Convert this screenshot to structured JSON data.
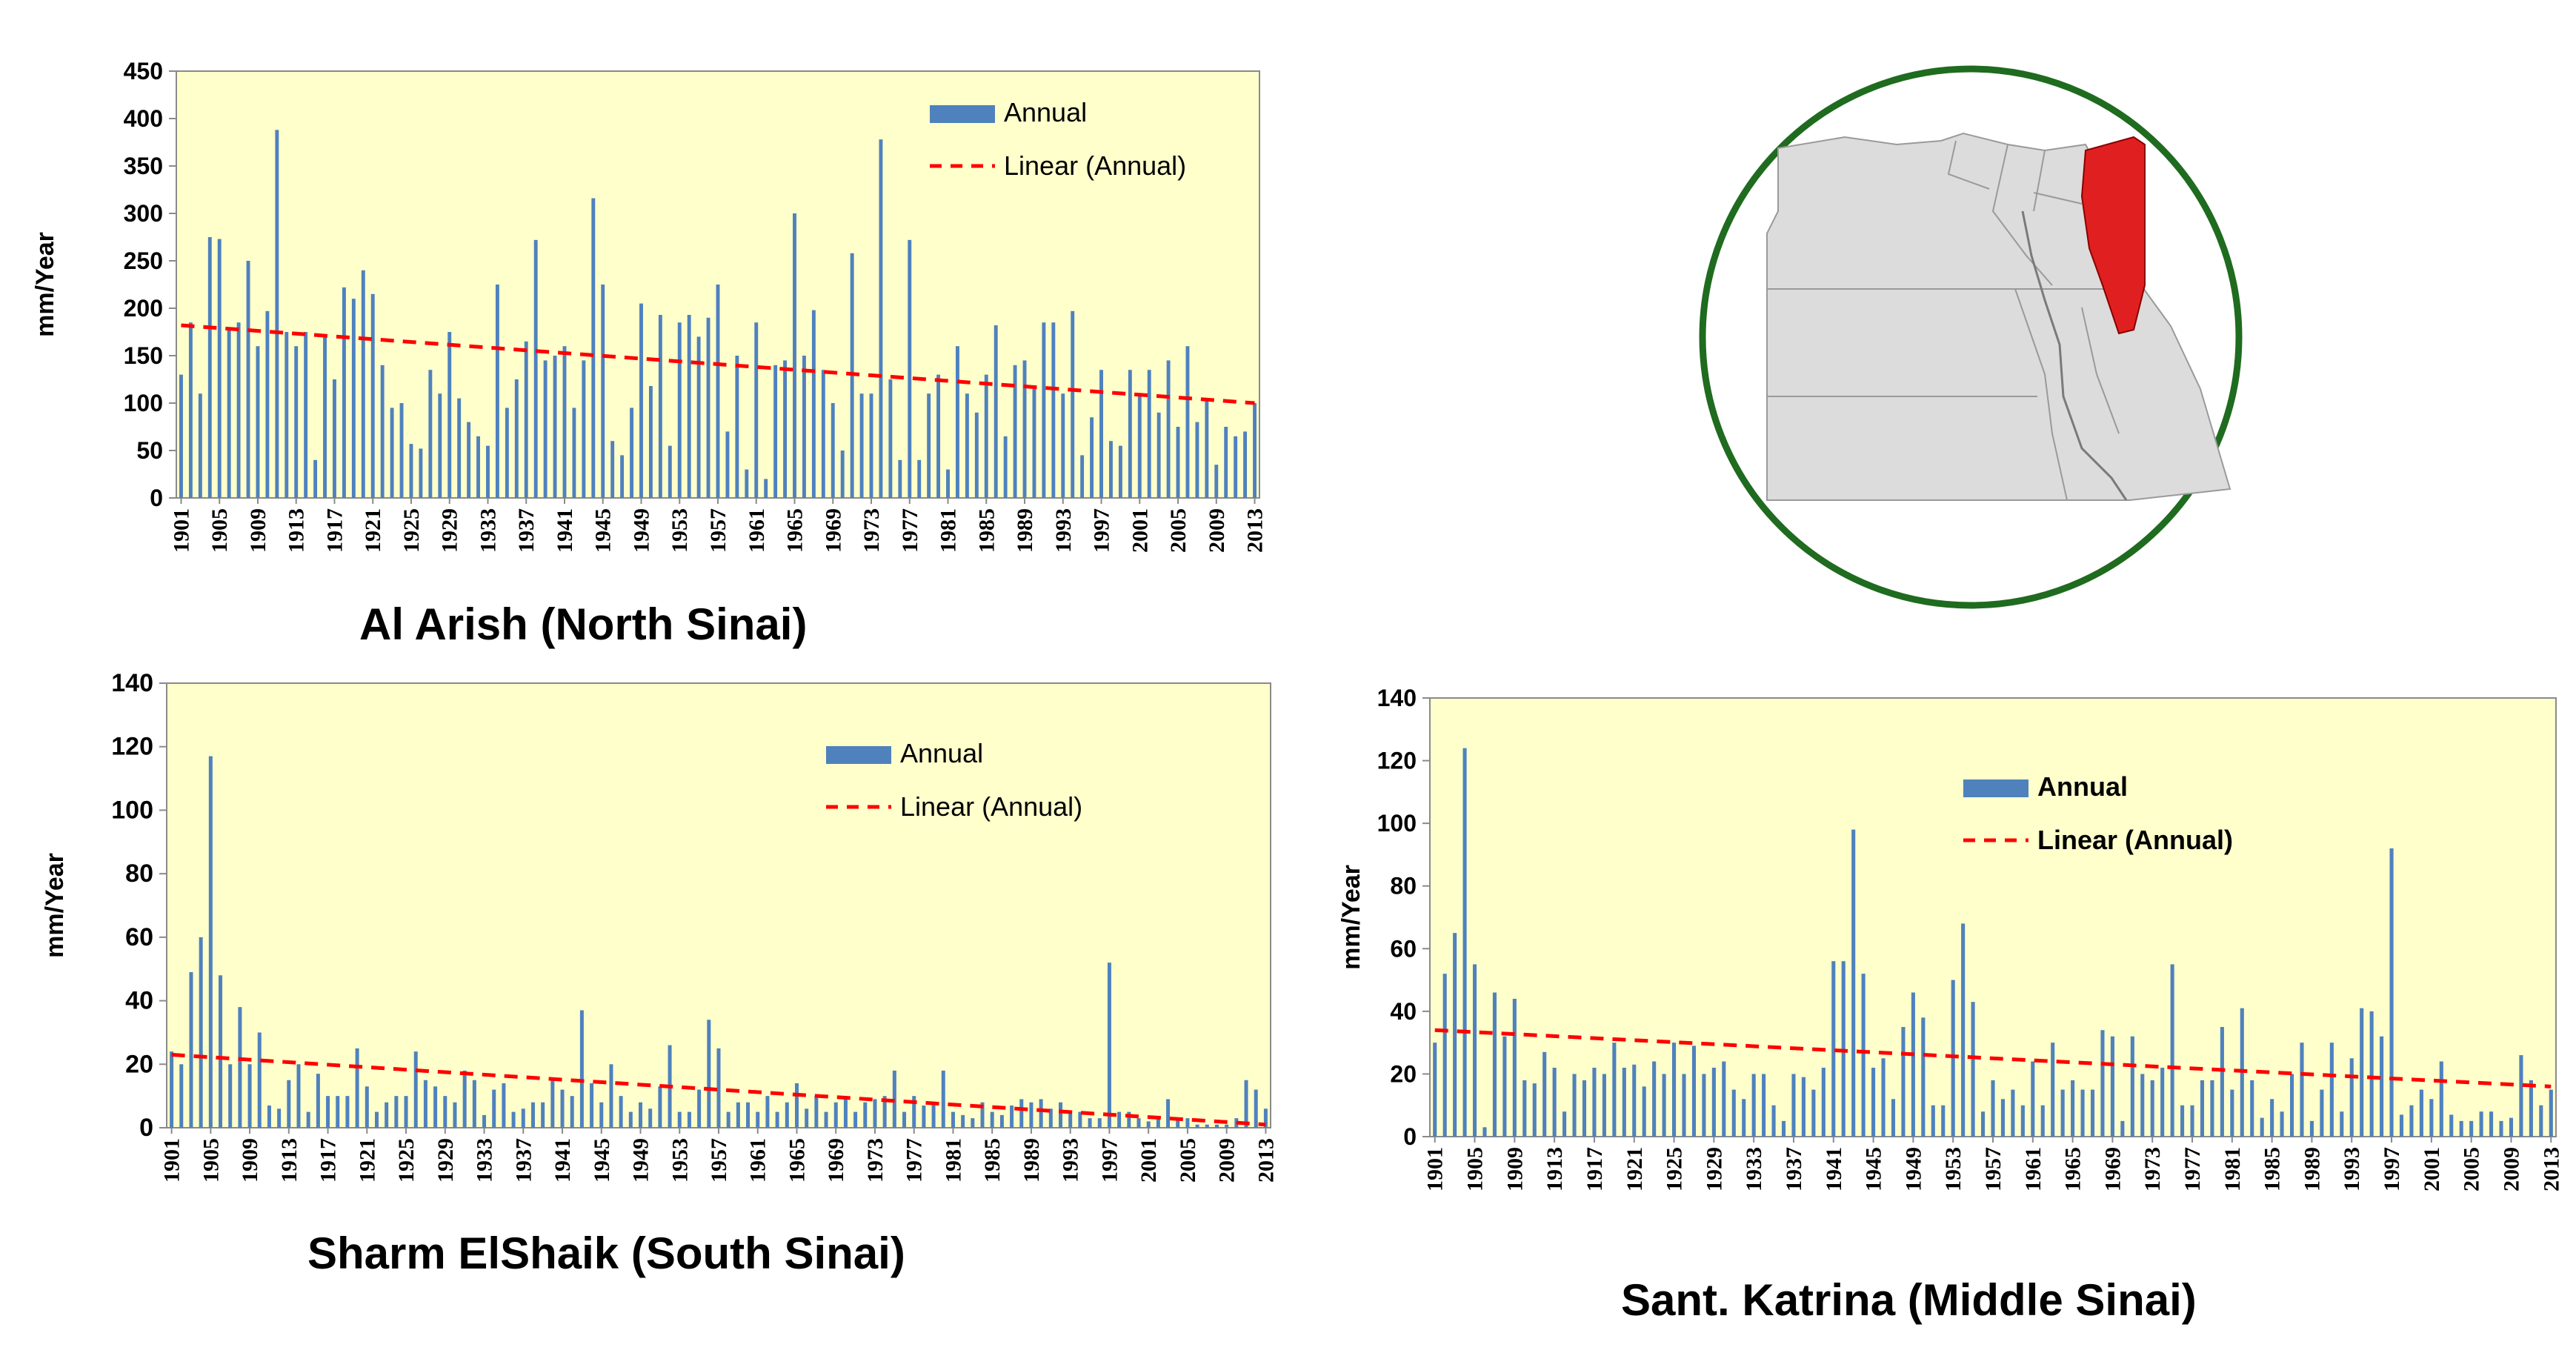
{
  "chart_data": [
    {
      "type": "bar",
      "title": "Al Arish (North Sinai)",
      "xlabel": "",
      "ylabel": "mm/Year",
      "ylim": [
        0,
        450
      ],
      "yticks": [
        0,
        50,
        100,
        150,
        200,
        250,
        300,
        350,
        400,
        450
      ],
      "tick_labels": [
        "1901",
        "1905",
        "1909",
        "1913",
        "1917",
        "1921",
        "1925",
        "1929",
        "1933",
        "1937",
        "1941",
        "1945",
        "1949",
        "1953",
        "1957",
        "1961",
        "1965",
        "1969",
        "1973",
        "1977",
        "1981",
        "1985",
        "1989",
        "1993",
        "1997",
        "2001",
        "2005",
        "2009",
        "2013"
      ],
      "legend": [
        "Annual",
        "Linear (Annual)"
      ],
      "legend_position": "top-right",
      "trend": {
        "start": 182,
        "end": 100
      },
      "categories_start": 1901,
      "categories_end": 2013,
      "series": [
        {
          "name": "Annual",
          "values": [
            130,
            185,
            110,
            275,
            273,
            180,
            185,
            250,
            160,
            197,
            388,
            175,
            160,
            175,
            40,
            170,
            125,
            222,
            210,
            240,
            215,
            140,
            95,
            100,
            57,
            52,
            135,
            110,
            175,
            105,
            80,
            65,
            55,
            225,
            95,
            125,
            165,
            272,
            145,
            150,
            160,
            95,
            145,
            316,
            225,
            60,
            45,
            95,
            205,
            118,
            193,
            55,
            185,
            193,
            170,
            190,
            225,
            70,
            150,
            30,
            185,
            20,
            140,
            145,
            300,
            150,
            198,
            135,
            100,
            50,
            258,
            110,
            110,
            378,
            125,
            40,
            272,
            40,
            110,
            130,
            30,
            160,
            110,
            90,
            130,
            182,
            65,
            140,
            145,
            115,
            185,
            185,
            110,
            197,
            45,
            85,
            135,
            60,
            55,
            135,
            110,
            135,
            90,
            145,
            75,
            160,
            80,
            105,
            35,
            75,
            65,
            70,
            100
          ]
        }
      ]
    },
    {
      "type": "bar",
      "title": "Sharm ElShaik  (South Sinai)",
      "xlabel": "",
      "ylabel": "mm/Year",
      "ylim": [
        0,
        140
      ],
      "yticks": [
        0,
        20,
        40,
        60,
        80,
        100,
        120,
        140
      ],
      "tick_labels": [
        "1901",
        "1905",
        "1909",
        "1913",
        "1917",
        "1921",
        "1925",
        "1929",
        "1933",
        "1937",
        "1941",
        "1945",
        "1949",
        "1953",
        "1957",
        "1961",
        "1965",
        "1969",
        "1973",
        "1977",
        "1981",
        "1985",
        "1989",
        "1993",
        "1997",
        "2001",
        "2005",
        "2009",
        "2013"
      ],
      "legend": [
        "Annual",
        "Linear (Annual)"
      ],
      "legend_position": "top-right",
      "trend": {
        "start": 23,
        "end": 1
      },
      "categories_start": 1901,
      "categories_end": 2013,
      "series": [
        {
          "name": "Annual",
          "values": [
            24,
            20,
            49,
            60,
            117,
            48,
            20,
            38,
            20,
            30,
            7,
            6,
            15,
            20,
            5,
            17,
            10,
            10,
            10,
            25,
            13,
            5,
            8,
            10,
            10,
            24,
            15,
            13,
            10,
            8,
            18,
            15,
            4,
            12,
            14,
            5,
            6,
            8,
            8,
            15,
            12,
            10,
            37,
            14,
            8,
            20,
            10,
            5,
            8,
            6,
            13,
            26,
            5,
            5,
            12,
            34,
            25,
            5,
            8,
            8,
            5,
            10,
            5,
            8,
            14,
            6,
            10,
            5,
            8,
            10,
            5,
            8,
            9,
            10,
            18,
            5,
            10,
            7,
            8,
            18,
            5,
            4,
            3,
            8,
            5,
            4,
            7,
            9,
            8,
            9,
            6,
            8,
            5,
            5,
            3,
            3,
            52,
            5,
            5,
            3,
            2,
            3,
            9,
            3,
            3,
            1,
            1,
            1,
            1,
            3,
            15,
            12,
            6
          ]
        }
      ]
    },
    {
      "type": "bar",
      "title": "Sant. Katrina  (Middle Sinai)",
      "xlabel": "",
      "ylabel": "mm/Year",
      "ylim": [
        0,
        140
      ],
      "yticks": [
        0,
        20,
        40,
        60,
        80,
        100,
        120,
        140
      ],
      "tick_labels": [
        "1901",
        "1905",
        "1909",
        "1913",
        "1917",
        "1921",
        "1925",
        "1929",
        "1933",
        "1937",
        "1941",
        "1945",
        "1949",
        "1953",
        "1957",
        "1961",
        "1965",
        "1969",
        "1973",
        "1977",
        "1981",
        "1985",
        "1989",
        "1993",
        "1997",
        "2001",
        "2005",
        "2009",
        "2013"
      ],
      "legend": [
        "Annual",
        "Linear (Annual)"
      ],
      "legend_position": "top-right",
      "trend": {
        "start": 34,
        "end": 16
      },
      "categories_start": 1901,
      "categories_end": 2013,
      "series": [
        {
          "name": "Annual",
          "values": [
            30,
            52,
            65,
            124,
            55,
            3,
            46,
            32,
            44,
            18,
            17,
            27,
            22,
            8,
            20,
            18,
            22,
            20,
            30,
            22,
            23,
            16,
            24,
            20,
            30,
            20,
            29,
            20,
            22,
            24,
            15,
            12,
            20,
            20,
            10,
            5,
            20,
            19,
            15,
            22,
            56,
            56,
            98,
            52,
            22,
            25,
            12,
            35,
            46,
            38,
            10,
            10,
            50,
            68,
            43,
            8,
            18,
            12,
            15,
            10,
            24,
            10,
            30,
            15,
            18,
            15,
            15,
            34,
            32,
            5,
            32,
            20,
            18,
            22,
            55,
            10,
            10,
            18,
            18,
            35,
            15,
            41,
            18,
            6,
            12,
            8,
            20,
            30,
            5,
            15,
            30,
            8,
            25,
            41,
            40,
            32,
            92,
            7,
            10,
            15,
            12,
            24,
            7,
            5,
            5,
            8,
            8,
            5,
            6,
            26,
            18,
            10,
            15
          ]
        }
      ]
    }
  ],
  "map": {
    "description_icon": "egypt-map-icon",
    "highlight_color": "#e02020",
    "circle_color": "#1f6b1f"
  },
  "colors": {
    "bar": "#4f81bd",
    "trend": "#ff0000",
    "plot_bg": "#ffffcc"
  }
}
